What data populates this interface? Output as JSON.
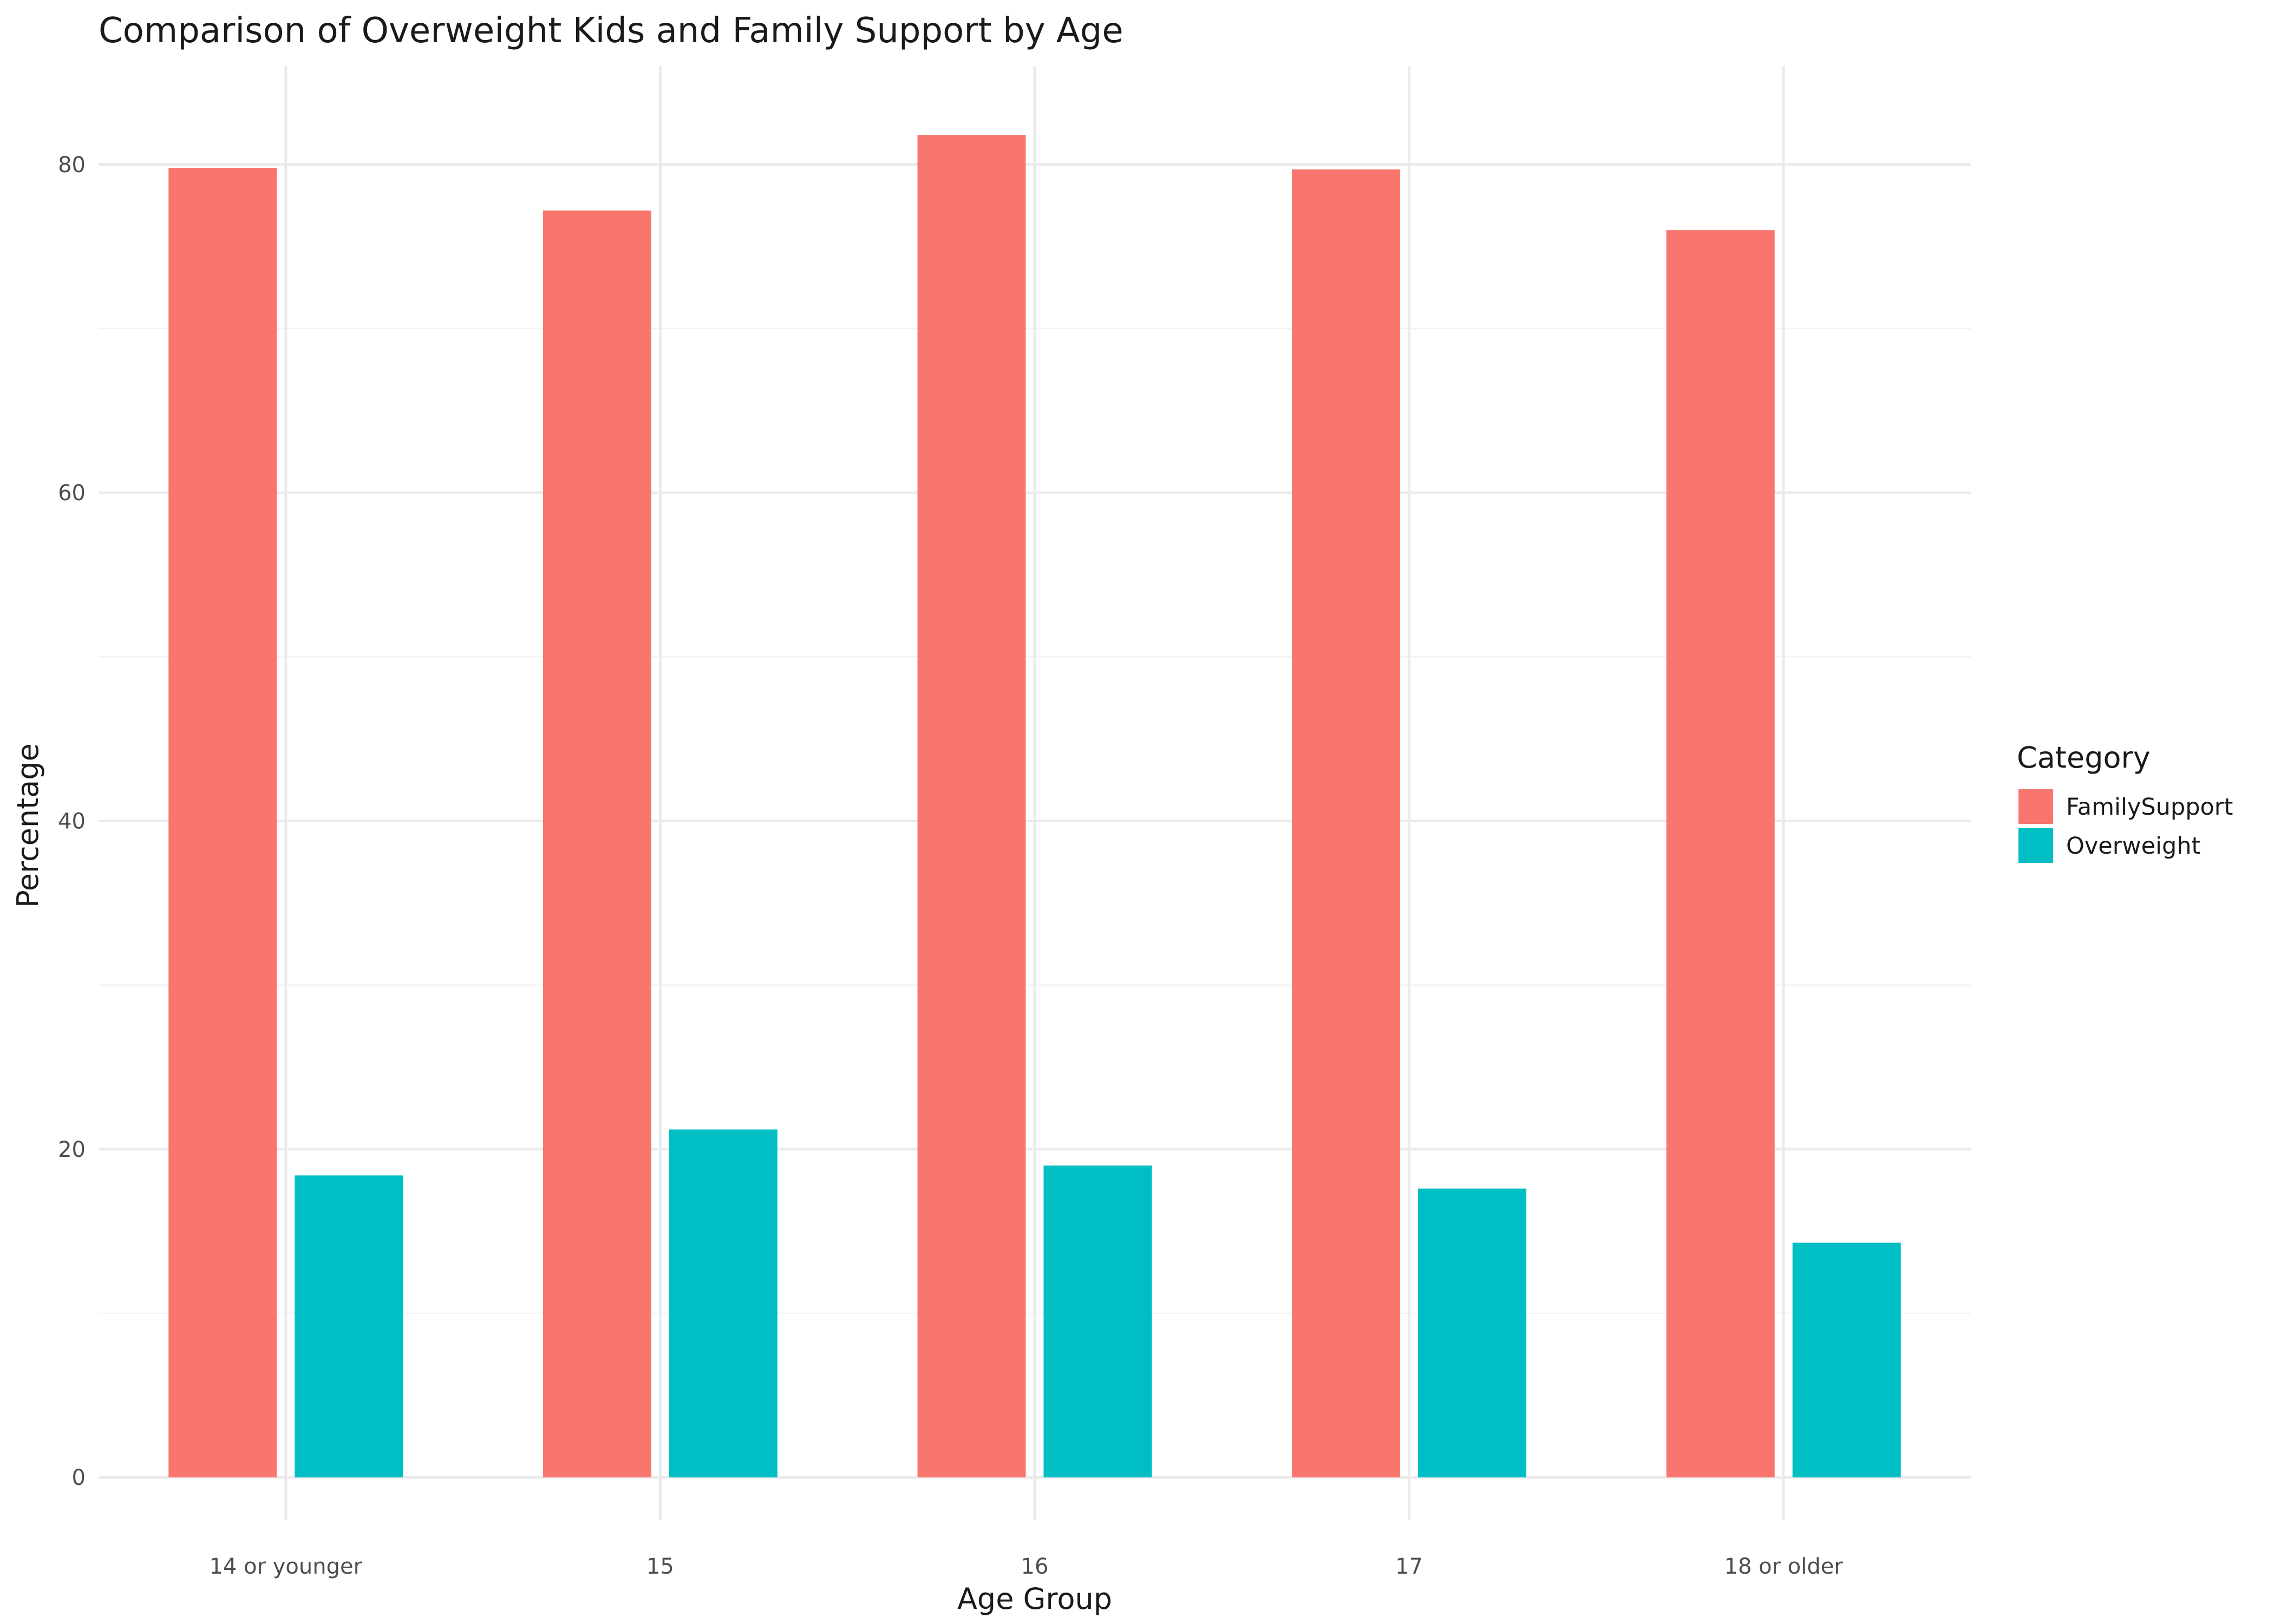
{
  "chart_data": {
    "type": "bar",
    "title": "Comparison of Overweight Kids and Family Support by Age",
    "xlabel": "Age Group",
    "ylabel": "Percentage",
    "categories": [
      "14 or younger",
      "15",
      "16",
      "17",
      "18 or older"
    ],
    "series": [
      {
        "name": "FamilySupport",
        "color": "#F8766D",
        "values": [
          79.8,
          77.2,
          81.8,
          79.7,
          76.0
        ]
      },
      {
        "name": "Overweight",
        "color": "#00BFC4",
        "values": [
          18.4,
          21.2,
          19.0,
          17.6,
          14.3
        ]
      }
    ],
    "ylim": [
      -2.6,
      86.0
    ],
    "yticks": [
      0,
      20,
      40,
      60,
      80
    ],
    "grid": true,
    "legend": {
      "title": "Category",
      "position": "right"
    }
  }
}
